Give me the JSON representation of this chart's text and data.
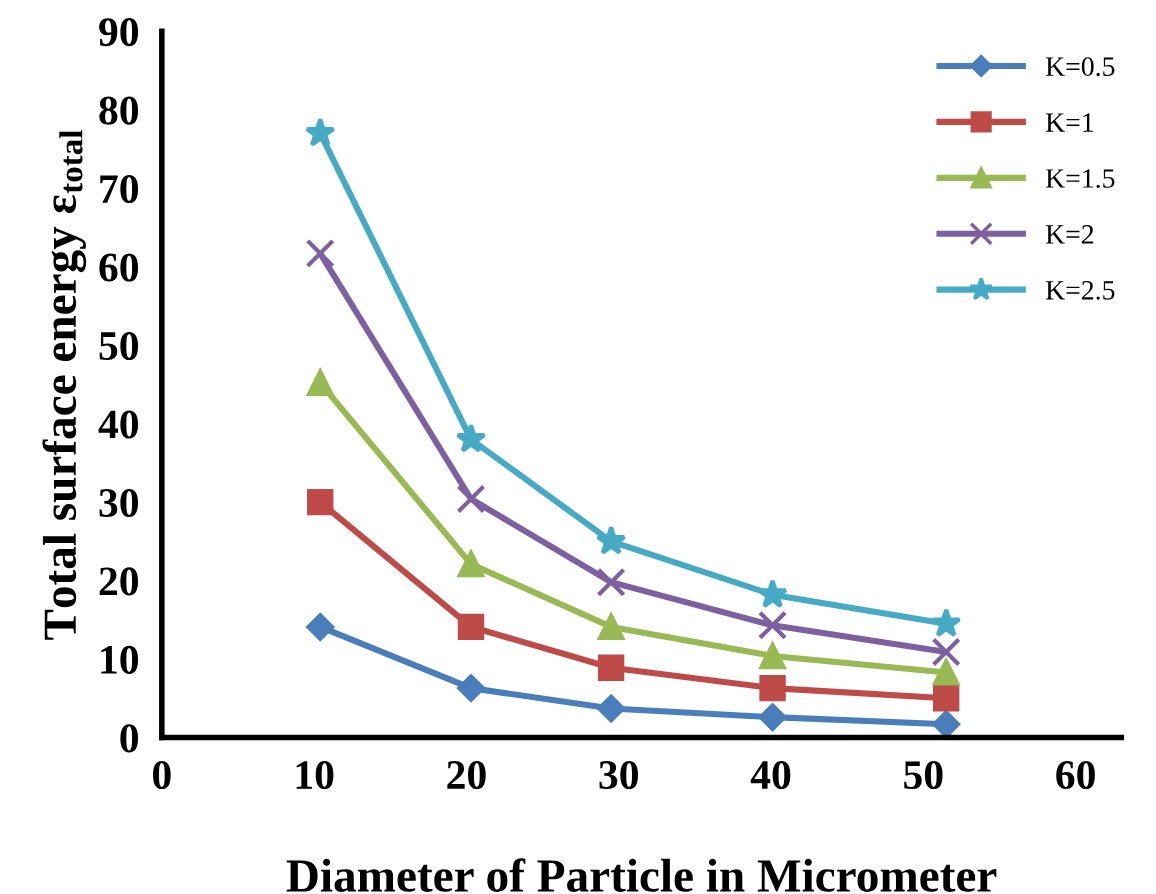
{
  "chart_data": {
    "type": "line",
    "xlabel": "Diameter of Particle in Micrometer",
    "ylabel": "Total surface energy ε$_{total}$",
    "x": [
      10.4,
      20.3,
      29.5,
      40.1,
      51.5
    ],
    "series": [
      {
        "name": "K=0.5",
        "color": "#4a7ebb",
        "marker": "diamond",
        "values": [
          14.1,
          6.3,
          3.7,
          2.6,
          1.7
        ]
      },
      {
        "name": "K=1",
        "color": "#be4b48",
        "marker": "square",
        "values": [
          30.0,
          14.1,
          8.9,
          6.3,
          5.0
        ]
      },
      {
        "name": "K=1.5",
        "color": "#98b954",
        "marker": "triangle",
        "values": [
          45.2,
          22.1,
          14.1,
          10.4,
          8.3
        ]
      },
      {
        "name": "K=2",
        "color": "#7d60a0",
        "marker": "cross",
        "values": [
          61.7,
          30.4,
          19.8,
          14.3,
          10.9
        ]
      },
      {
        "name": "K=2.5",
        "color": "#46aac5",
        "marker": "star",
        "values": [
          77.0,
          38.0,
          25.0,
          18.2,
          14.5
        ]
      }
    ],
    "xlim": [
      0,
      63
    ],
    "ylim": [
      0,
      90
    ],
    "xticks": [
      0,
      10,
      20,
      30,
      40,
      50,
      60
    ],
    "yticks": [
      0,
      10,
      20,
      30,
      40,
      50,
      60,
      70,
      80,
      90
    ],
    "grid": false,
    "legend": "top right",
    "line_style": "solid"
  }
}
